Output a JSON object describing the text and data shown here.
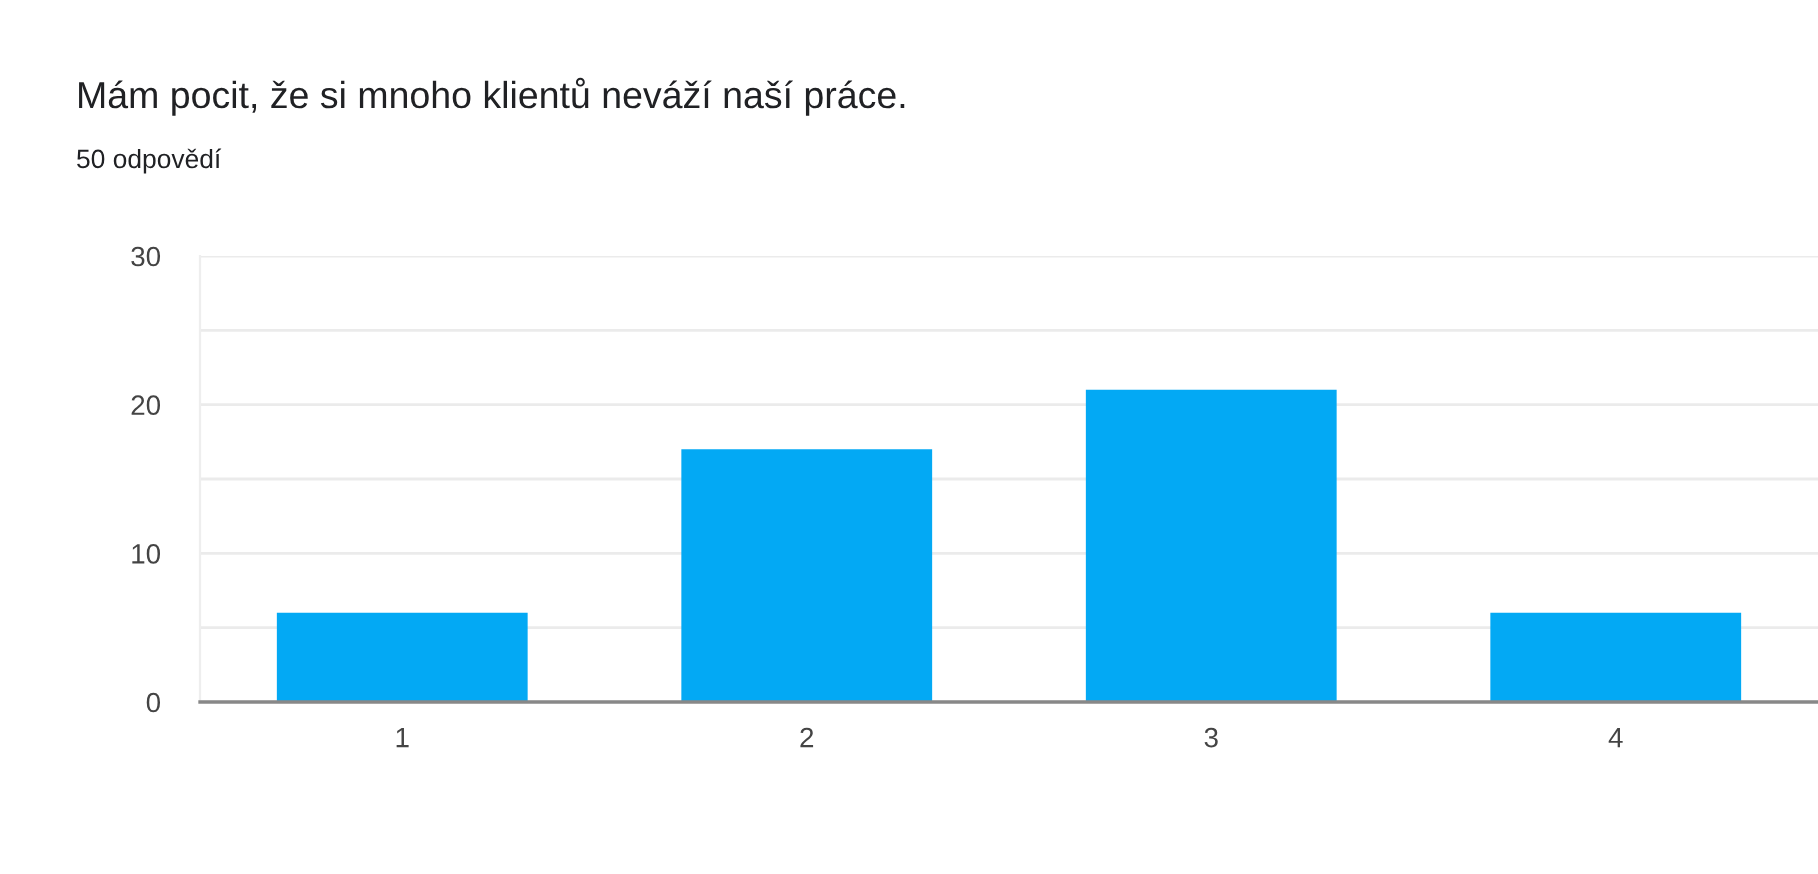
{
  "chart_data": {
    "type": "bar",
    "title": "Mám pocit, že si mnoho klientů neváží naší práce.",
    "subtitle": "50 odpovědí",
    "categories": [
      "1",
      "2",
      "3",
      "4"
    ],
    "values": [
      6,
      17,
      21,
      6
    ],
    "color": "#03a9f4",
    "ylim": [
      0,
      30
    ],
    "yticks": [
      0,
      {
        "value": 5,
        "label": null
      },
      10,
      {
        "value": 15,
        "label": null
      },
      20,
      {
        "value": 25,
        "label": null
      },
      30
    ],
    "grid": "y"
  }
}
